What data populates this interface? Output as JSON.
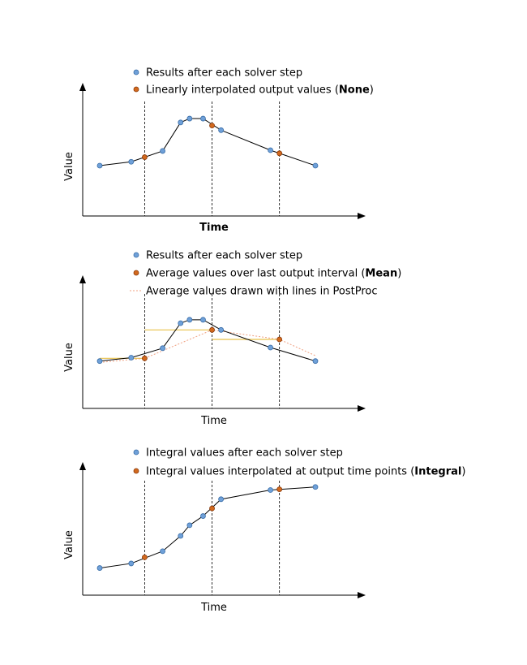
{
  "colors": {
    "solver_point": "#6fa0d8",
    "solver_point_stroke": "#3a6ea8",
    "output_point": "#d2691e",
    "output_point_stroke": "#8b3a0a",
    "mean_line": "#e8c14a",
    "postproc_line": "#f0a080",
    "axis": "#000000",
    "guide": "#000000"
  },
  "chart_data": [
    {
      "type": "line",
      "xlabel": "Time",
      "ylabel": "Value",
      "xlabel_bold": true,
      "legend": [
        {
          "kind": "solver",
          "text_pre": "Results after each solver step",
          "text_bold": "",
          "text_post": ""
        },
        {
          "kind": "output",
          "text_pre": "Linearly interpolated output values (",
          "text_bold": "None",
          "text_post": ")"
        }
      ],
      "output_times": [
        3,
        6,
        9
      ],
      "solver_series": {
        "x": [
          1,
          2.4,
          3.8,
          4.6,
          5.0,
          5.6,
          6.4,
          8.6,
          10.6
        ],
        "y": [
          2.0,
          2.25,
          2.95,
          4.8,
          5.05,
          5.05,
          4.3,
          3.0,
          2.0
        ]
      },
      "output_series": {
        "x": [
          3,
          6,
          9
        ],
        "y": [
          2.55,
          4.6,
          2.8
        ]
      }
    },
    {
      "type": "line",
      "xlabel": "Time",
      "ylabel": "Value",
      "xlabel_bold": false,
      "legend": [
        {
          "kind": "solver",
          "text_pre": "Results after each solver step",
          "text_bold": "",
          "text_post": ""
        },
        {
          "kind": "output",
          "text_pre": "Average values over last output interval (",
          "text_bold": "Mean",
          "text_post": ")"
        },
        {
          "kind": "postproc",
          "text_pre": "Average values drawn with lines in PostProc",
          "text_bold": "",
          "text_post": ""
        }
      ],
      "output_times": [
        3,
        6,
        9
      ],
      "solver_series": {
        "x": [
          1,
          2.4,
          3.8,
          4.6,
          5.0,
          5.6,
          6.4,
          8.6,
          10.6
        ],
        "y": [
          2.0,
          2.25,
          2.95,
          4.8,
          5.05,
          5.05,
          4.3,
          3.0,
          2.0
        ]
      },
      "output_series": {
        "x": [
          3,
          6,
          9
        ],
        "y": [
          2.2,
          4.3,
          3.6
        ]
      },
      "mean_steps": [
        {
          "x0": 1,
          "x1": 3,
          "y": 2.2
        },
        {
          "x0": 3,
          "x1": 6,
          "y": 4.3
        },
        {
          "x0": 6,
          "x1": 9,
          "y": 3.6
        }
      ],
      "postproc_series": {
        "x": [
          1,
          3,
          6,
          9,
          10.6
        ],
        "y": [
          1.9,
          2.2,
          4.3,
          3.6,
          2.4
        ]
      }
    },
    {
      "type": "line",
      "xlabel": "Time",
      "ylabel": "Value",
      "xlabel_bold": false,
      "legend": [
        {
          "kind": "solver",
          "text_pre": "Integral values after each solver step",
          "text_bold": "",
          "text_post": ""
        },
        {
          "kind": "output",
          "text_pre": "Integral values interpolated at output time points (",
          "text_bold": "Integral",
          "text_post": ")"
        }
      ],
      "output_times": [
        3,
        6,
        9
      ],
      "solver_series": {
        "x": [
          1,
          2.4,
          3.8,
          4.6,
          5.0,
          5.6,
          6.4,
          8.6,
          10.6
        ],
        "y": [
          0.5,
          0.8,
          1.6,
          2.6,
          3.3,
          3.9,
          5.0,
          5.6,
          5.8
        ]
      },
      "output_series": {
        "x": [
          3,
          6,
          9
        ],
        "y": [
          1.2,
          4.4,
          5.65
        ]
      }
    }
  ]
}
